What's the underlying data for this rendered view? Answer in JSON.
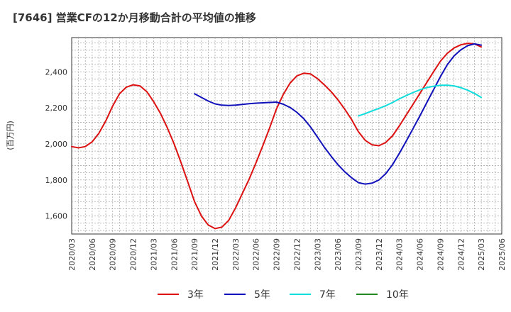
{
  "title": "[7646]  営業CFの12か月移動合計の平均値の推移",
  "chart_data": {
    "type": "line",
    "title": "[7646]  営業CFの12か月移動合計の平均値の推移",
    "ylabel": "(百万円)",
    "xlabel": "",
    "ylim": [
      1500,
      2590
    ],
    "yticks": [
      1600,
      1800,
      2000,
      2200,
      2400
    ],
    "ytick_labels": [
      "1,600",
      "1,800",
      "2,000",
      "2,200",
      "2,400"
    ],
    "xticks": [
      "2020/03",
      "2020/06",
      "2020/09",
      "2020/12",
      "2021/03",
      "2021/06",
      "2021/09",
      "2021/12",
      "2022/03",
      "2022/06",
      "2022/09",
      "2022/12",
      "2023/03",
      "2023/06",
      "2023/09",
      "2023/12",
      "2024/03",
      "2024/06",
      "2024/09",
      "2024/12",
      "2025/03",
      "2025/06"
    ],
    "grid": true,
    "legend_position": "bottom",
    "series": [
      {
        "name": "3年",
        "color": "#dd1111",
        "x": [
          "2020/03",
          "2020/04",
          "2020/05",
          "2020/06",
          "2020/07",
          "2020/08",
          "2020/09",
          "2020/10",
          "2020/11",
          "2020/12",
          "2021/01",
          "2021/02",
          "2021/03",
          "2021/04",
          "2021/05",
          "2021/06",
          "2021/07",
          "2021/08",
          "2021/09",
          "2021/10",
          "2021/11",
          "2021/12",
          "2022/01",
          "2022/02",
          "2022/03",
          "2022/04",
          "2022/05",
          "2022/06",
          "2022/07",
          "2022/08",
          "2022/09",
          "2022/10",
          "2022/11",
          "2022/12",
          "2023/01",
          "2023/02",
          "2023/03",
          "2023/04",
          "2023/05",
          "2023/06",
          "2023/07",
          "2023/08",
          "2023/09",
          "2023/10",
          "2023/11",
          "2023/12",
          "2024/01",
          "2024/02",
          "2024/03",
          "2024/04",
          "2024/05",
          "2024/06",
          "2024/07",
          "2024/08",
          "2024/09",
          "2024/10",
          "2024/11",
          "2024/12",
          "2025/01",
          "2025/02",
          "2025/03"
        ],
        "values": [
          1985,
          1978,
          1985,
          2012,
          2060,
          2128,
          2210,
          2278,
          2315,
          2328,
          2322,
          2290,
          2235,
          2170,
          2090,
          2000,
          1898,
          1790,
          1680,
          1600,
          1550,
          1530,
          1538,
          1575,
          1645,
          1725,
          1805,
          1895,
          1990,
          2090,
          2195,
          2275,
          2338,
          2378,
          2392,
          2388,
          2362,
          2328,
          2290,
          2245,
          2192,
          2135,
          2068,
          2020,
          1995,
          1990,
          2008,
          2045,
          2100,
          2160,
          2220,
          2280,
          2340,
          2400,
          2458,
          2502,
          2532,
          2550,
          2558,
          2555,
          2538
        ]
      },
      {
        "name": "5年",
        "color": "#1111bb",
        "x": [
          "2021/09",
          "2021/10",
          "2021/11",
          "2021/12",
          "2022/01",
          "2022/02",
          "2022/03",
          "2022/04",
          "2022/05",
          "2022/06",
          "2022/07",
          "2022/08",
          "2022/09",
          "2022/10",
          "2022/11",
          "2022/12",
          "2023/01",
          "2023/02",
          "2023/03",
          "2023/04",
          "2023/05",
          "2023/06",
          "2023/07",
          "2023/08",
          "2023/09",
          "2023/10",
          "2023/11",
          "2023/12",
          "2024/01",
          "2024/02",
          "2024/03",
          "2024/04",
          "2024/05",
          "2024/06",
          "2024/07",
          "2024/08",
          "2024/09",
          "2024/10",
          "2024/11",
          "2024/12",
          "2025/01",
          "2025/02",
          "2025/03"
        ],
        "values": [
          2278,
          2258,
          2238,
          2222,
          2215,
          2213,
          2215,
          2219,
          2223,
          2226,
          2228,
          2230,
          2232,
          2220,
          2202,
          2175,
          2140,
          2093,
          2038,
          1982,
          1932,
          1885,
          1845,
          1812,
          1785,
          1777,
          1782,
          1800,
          1835,
          1885,
          1948,
          2015,
          2085,
          2155,
          2228,
          2300,
          2372,
          2438,
          2488,
          2522,
          2545,
          2555,
          2548
        ]
      },
      {
        "name": "7年",
        "color": "#11dddd",
        "x": [
          "2023/09",
          "2023/10",
          "2023/11",
          "2023/12",
          "2024/01",
          "2024/02",
          "2024/03",
          "2024/04",
          "2024/05",
          "2024/06",
          "2024/07",
          "2024/08",
          "2024/09",
          "2024/10",
          "2024/11",
          "2024/12",
          "2025/01",
          "2025/02",
          "2025/03"
        ],
        "values": [
          2155,
          2168,
          2183,
          2197,
          2212,
          2230,
          2250,
          2268,
          2285,
          2300,
          2312,
          2320,
          2325,
          2326,
          2322,
          2312,
          2298,
          2280,
          2258
        ]
      },
      {
        "name": "10年",
        "color": "#228822",
        "x": [],
        "values": []
      }
    ]
  }
}
